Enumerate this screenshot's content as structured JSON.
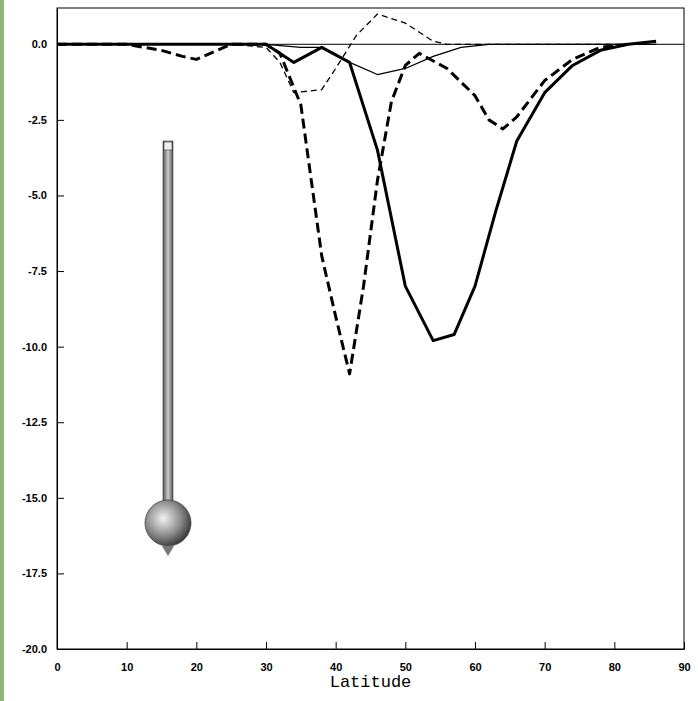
{
  "chart_data": {
    "type": "line",
    "x_label": "Latitude",
    "xlim": [
      0,
      90
    ],
    "xticks": [
      0,
      10,
      20,
      30,
      40,
      50,
      60,
      70,
      80,
      90
    ],
    "ylim": [
      -20,
      1.2
    ],
    "yticks": [
      {
        "value": 0,
        "label": "0.0"
      },
      {
        "value": -2.5,
        "label": "-2.5"
      },
      {
        "value": -5,
        "label": "-5.0"
      },
      {
        "value": -7.5,
        "label": "-7.5"
      },
      {
        "value": -10,
        "label": "-10.0"
      },
      {
        "value": -12.5,
        "label": "-12.5"
      },
      {
        "value": -15,
        "label": "-15.0"
      },
      {
        "value": -17.5,
        "label": "-17.5"
      },
      {
        "value": -20,
        "label": "-20.0"
      }
    ],
    "grid": false,
    "series": [
      {
        "color": "#000000",
        "line_style": "solid",
        "x": [
          0,
          10,
          20,
          30,
          34,
          38,
          42,
          46,
          50,
          54,
          57,
          60,
          63,
          66,
          70,
          74,
          78,
          82,
          86
        ],
        "values": [
          0,
          0,
          0,
          0,
          -0.6,
          -0.1,
          -0.6,
          -3.5,
          -8.0,
          -9.8,
          -9.6,
          -8.0,
          -5.5,
          -3.2,
          -1.6,
          -0.7,
          -0.2,
          0,
          0.1
        ]
      },
      {
        "color": "#000000",
        "line_style": "dashed",
        "x": [
          0,
          10,
          15,
          18,
          20,
          22,
          25,
          30,
          32,
          35,
          38,
          40,
          42,
          44,
          46,
          48,
          50,
          52,
          56,
          60,
          62,
          64,
          66,
          70,
          74,
          78,
          82
        ],
        "values": [
          0,
          0,
          -0.2,
          -0.4,
          -0.5,
          -0.3,
          0,
          0,
          -0.3,
          -2.0,
          -7.0,
          -9.0,
          -10.9,
          -8.0,
          -4.5,
          -1.9,
          -0.7,
          -0.3,
          -0.8,
          -1.7,
          -2.5,
          -2.8,
          -2.4,
          -1.2,
          -0.5,
          -0.1,
          0
        ]
      },
      {
        "color": "#000000",
        "line_style": "dashed",
        "x": [
          0,
          25,
          30,
          32,
          34,
          38,
          40,
          43,
          46,
          50,
          54,
          56,
          60,
          70,
          86
        ],
        "values": [
          0,
          0,
          -0.1,
          -0.6,
          -1.6,
          -1.5,
          -0.8,
          0.3,
          1.0,
          0.7,
          0.1,
          0,
          0,
          0,
          0
        ]
      },
      {
        "color": "#000000",
        "line_style": "solid",
        "x": [
          0,
          30,
          35,
          38,
          42,
          46,
          50,
          54,
          58,
          62,
          70,
          86
        ],
        "values": [
          0,
          0,
          -0.1,
          -0.1,
          -0.6,
          -1.0,
          -0.8,
          -0.4,
          -0.1,
          0,
          0,
          0
        ]
      }
    ]
  }
}
